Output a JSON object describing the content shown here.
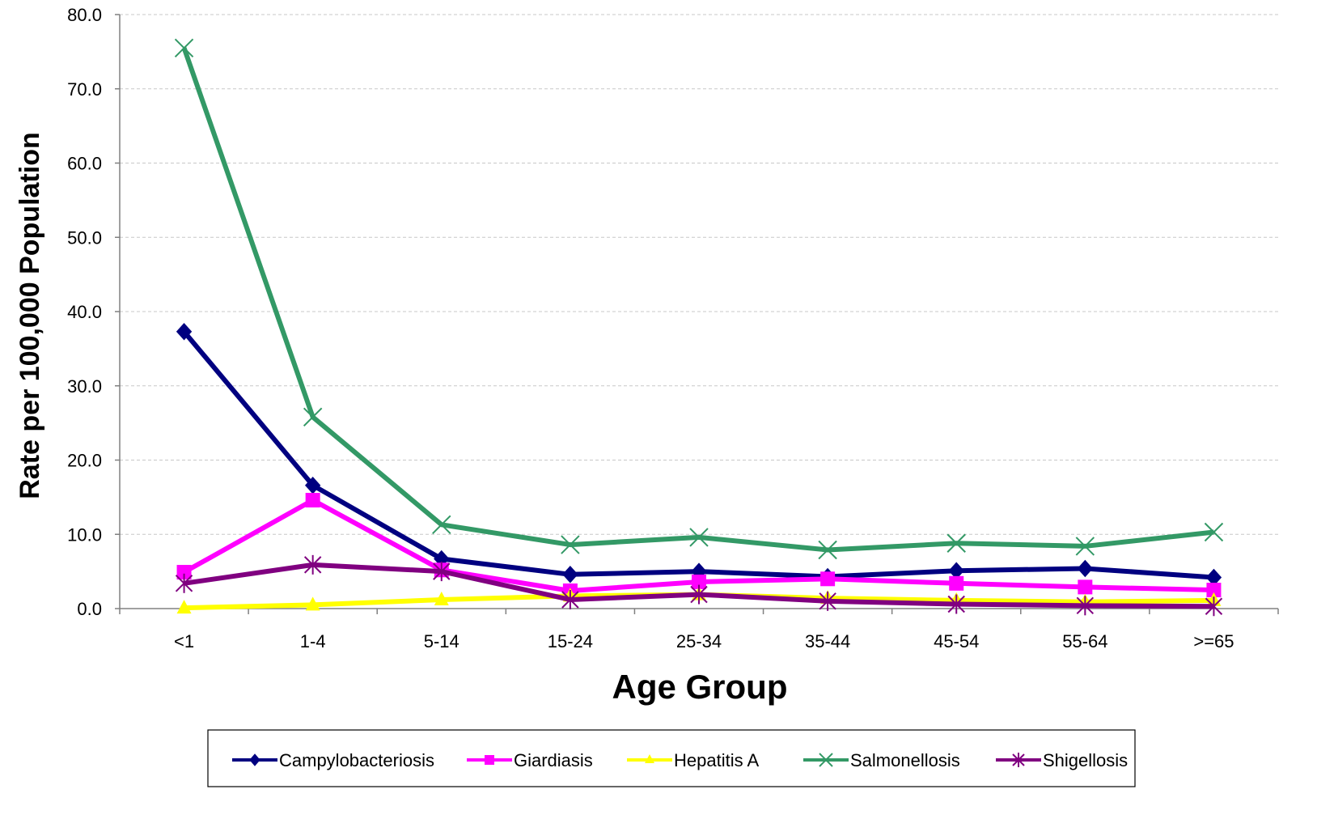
{
  "chart_data": {
    "type": "line",
    "title": "",
    "xlabel": "Age Group",
    "ylabel": "Rate per 100,000 Population",
    "categories": [
      "<1",
      "1-4",
      "5-14",
      "15-24",
      "25-34",
      "35-44",
      "45-54",
      "55-64",
      ">=65"
    ],
    "ylim": [
      0,
      80
    ],
    "yticks": [
      "0.0",
      "10.0",
      "20.0",
      "30.0",
      "40.0",
      "50.0",
      "60.0",
      "70.0",
      "80.0"
    ],
    "grid": "horizontal dashed",
    "legend_position": "bottom",
    "series": [
      {
        "name": "Campylobacteriosis",
        "color": "#000080",
        "marker": "diamond",
        "values": [
          37.3,
          16.6,
          6.7,
          4.6,
          5.0,
          4.3,
          5.1,
          5.4,
          4.2
        ]
      },
      {
        "name": "Giardiasis",
        "color": "#FF00FF",
        "marker": "square",
        "values": [
          4.9,
          14.6,
          5.2,
          2.4,
          3.6,
          4.0,
          3.4,
          2.9,
          2.5
        ]
      },
      {
        "name": "Hepatitis A",
        "color": "#FFFF00",
        "marker": "triangle",
        "values": [
          0.1,
          0.5,
          1.2,
          1.7,
          1.9,
          1.4,
          1.1,
          0.9,
          1.1
        ]
      },
      {
        "name": "Salmonellosis",
        "color": "#339966",
        "marker": "x",
        "values": [
          75.5,
          25.8,
          11.3,
          8.6,
          9.6,
          7.9,
          8.8,
          8.4,
          10.3
        ]
      },
      {
        "name": "Shigellosis",
        "color": "#800080",
        "marker": "asterisk",
        "values": [
          3.4,
          5.9,
          5.0,
          1.2,
          1.9,
          1.0,
          0.6,
          0.4,
          0.3
        ]
      }
    ]
  }
}
